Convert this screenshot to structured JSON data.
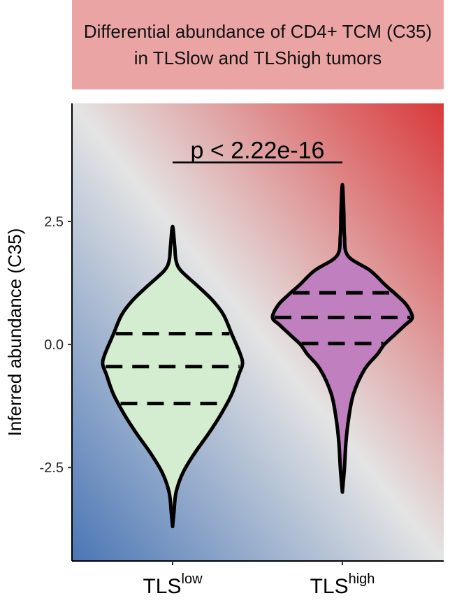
{
  "chart_data": {
    "type": "violin",
    "title": "Differential abundance of CD4+ TCM (C35) in TLSlow and TLShigh tumors",
    "ylabel": "Inferred abundance (C35)",
    "ylim": [
      -4.4,
      4.9
    ],
    "yticks": [
      2.5,
      0.0,
      -2.5
    ],
    "ytick_labels": [
      "2.5",
      "0.0",
      "-2.5"
    ],
    "categories": [
      {
        "base": "TLS",
        "sup": "low"
      },
      {
        "base": "TLS",
        "sup": "high"
      }
    ],
    "annotation": "p < 2.22e-16",
    "background": "diagonal gradient from blue (bottom-left) through light grey to red (top-right)",
    "series": [
      {
        "category_index": 0,
        "fill": "#d4ecd0",
        "quartiles": [
          -1.2,
          -0.45,
          0.22
        ],
        "min": -3.7,
        "max": 2.4,
        "density": [
          [
            -3.7,
            0.0
          ],
          [
            -3.4,
            0.02
          ],
          [
            -3.0,
            0.05
          ],
          [
            -2.6,
            0.15
          ],
          [
            -2.2,
            0.32
          ],
          [
            -1.8,
            0.52
          ],
          [
            -1.4,
            0.7
          ],
          [
            -1.0,
            0.85
          ],
          [
            -0.6,
            0.95
          ],
          [
            -0.4,
            1.0
          ],
          [
            -0.2,
            0.97
          ],
          [
            0.2,
            0.85
          ],
          [
            0.6,
            0.73
          ],
          [
            0.9,
            0.57
          ],
          [
            1.2,
            0.35
          ],
          [
            1.5,
            0.12
          ],
          [
            1.7,
            0.05
          ],
          [
            2.0,
            0.03
          ],
          [
            2.4,
            0.0
          ]
        ]
      },
      {
        "category_index": 1,
        "fill": "#c080c0",
        "quartiles": [
          0.02,
          0.55,
          1.05
        ],
        "min": -3.0,
        "max": 3.25,
        "density": [
          [
            -3.0,
            0.0
          ],
          [
            -2.5,
            0.03
          ],
          [
            -2.0,
            0.05
          ],
          [
            -1.5,
            0.09
          ],
          [
            -1.0,
            0.16
          ],
          [
            -0.5,
            0.32
          ],
          [
            -0.2,
            0.5
          ],
          [
            0.0,
            0.6
          ],
          [
            0.2,
            0.75
          ],
          [
            0.4,
            0.9
          ],
          [
            0.55,
            1.0
          ],
          [
            0.8,
            0.92
          ],
          [
            1.0,
            0.78
          ],
          [
            1.2,
            0.62
          ],
          [
            1.5,
            0.4
          ],
          [
            1.8,
            0.08
          ],
          [
            2.2,
            0.03
          ],
          [
            2.7,
            0.02
          ],
          [
            3.25,
            0.0
          ]
        ]
      }
    ],
    "colors": {
      "gradient_low": "#4a76b5",
      "gradient_mid": "#e4e4e4",
      "gradient_high": "#d9393a",
      "title_strip": "#eba4a4"
    }
  }
}
